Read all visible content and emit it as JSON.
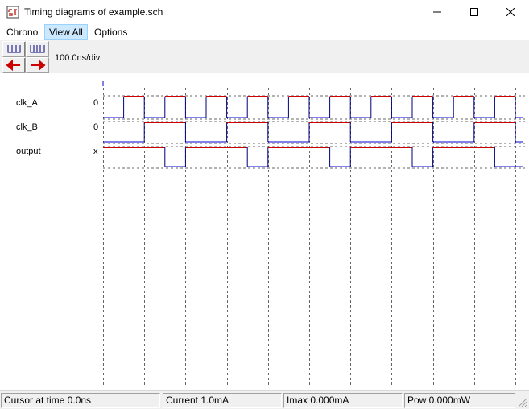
{
  "window": {
    "title": "Timing diagrams of example.sch"
  },
  "menu": [
    "Chrono",
    "View All",
    "Options"
  ],
  "toolbar": {
    "scale": "100.0ns/div"
  },
  "signals": [
    {
      "name": "clk_A",
      "value": "0"
    },
    {
      "name": "clk_B",
      "value": "0"
    },
    {
      "name": "output",
      "value": "x"
    }
  ],
  "status": {
    "cursor": "Cursor at time  0.0ns",
    "current": "Current  1.0mA",
    "imax": "Imax 0.000mA",
    "pow": "Pow 0.000mW"
  },
  "colors": {
    "high": "#cc0000",
    "low": "#0000cc",
    "grid": "#666666"
  },
  "icons": [
    "app-icon",
    "minimize-icon",
    "maximize-icon",
    "close-icon",
    "zoom-in-icon",
    "zoom-out-icon",
    "scroll-left-icon",
    "scroll-right-icon",
    "resize-grip-icon"
  ]
}
